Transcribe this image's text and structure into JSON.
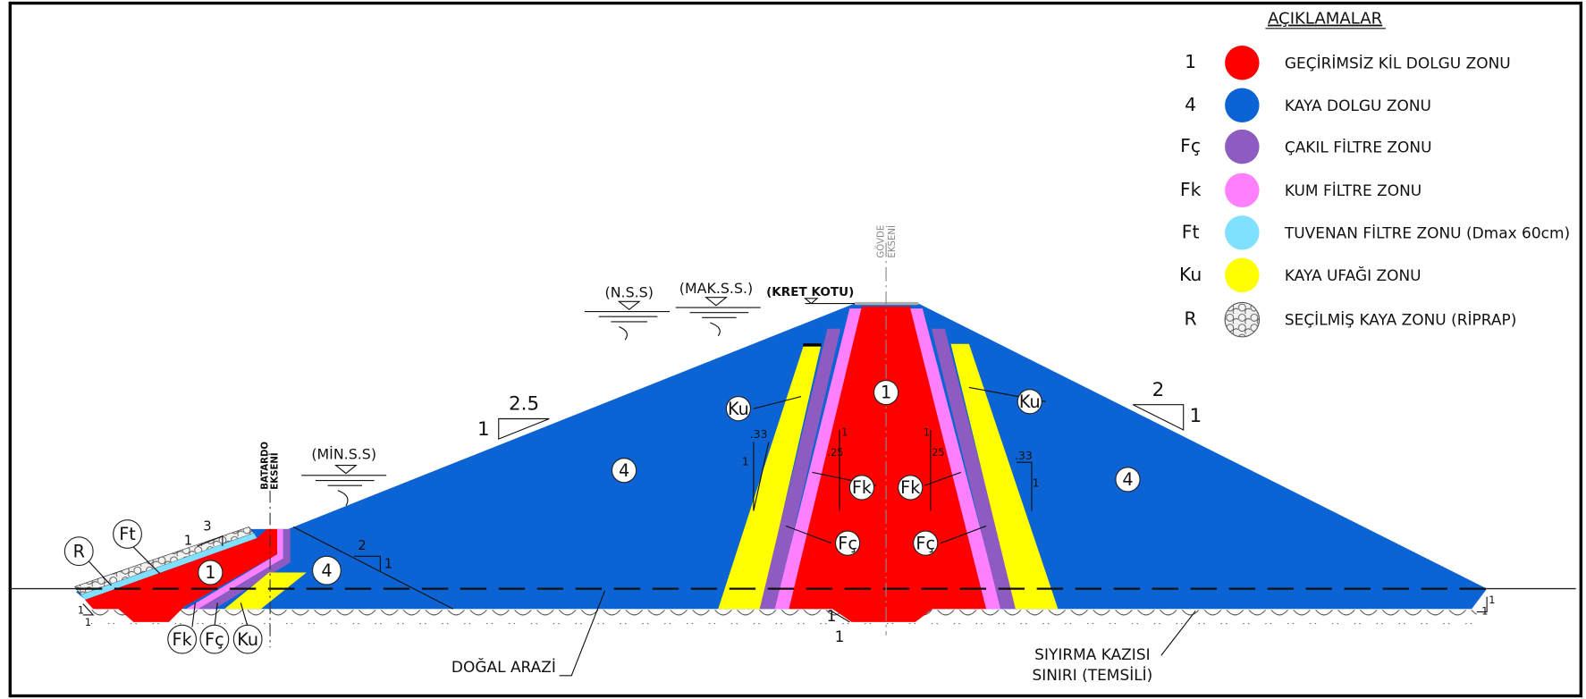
{
  "legend": {
    "title": "AÇIKLAMALAR",
    "items": [
      {
        "symbol": "1",
        "label": "GEÇİRİMSİZ KİL DOLGU ZONU",
        "color": "#ff0000"
      },
      {
        "symbol": "4",
        "label": "KAYA DOLGU ZONU",
        "color": "#0b63d4"
      },
      {
        "symbol": "Fç",
        "label": "ÇAKIL FİLTRE ZONU",
        "color": "#8e5cc0"
      },
      {
        "symbol": "Fk",
        "label": "KUM FİLTRE ZONU",
        "color": "#ff80ff"
      },
      {
        "symbol": "Ft",
        "label": "TUVENAN FİLTRE ZONU (Dmax 60cm)",
        "color": "#80e0ff"
      },
      {
        "symbol": "Ku",
        "label": "KAYA UFAĞI ZONU",
        "color": "#ffff00"
      },
      {
        "symbol": "R",
        "label": "SEÇİLMİŞ KAYA ZONU (RİPRAP)"
      }
    ]
  },
  "zones": [
    "1",
    "4",
    "4",
    "Ku",
    "Ku",
    "Fk",
    "Fk",
    "Fç",
    "Fç",
    "R",
    "Ft",
    "1",
    "4",
    "Fk",
    "Fç",
    "Ku"
  ],
  "annotations": {
    "nss": "(N.S.S)",
    "makss": "(MAK.S.S.)",
    "kret": "(KRET KOTU)",
    "minss": "(MİN.S.S)",
    "batardo": [
      "BATARDO",
      "EKSENİ"
    ],
    "govde": [
      "GÖVDE",
      "EKSENİ"
    ],
    "dogal": "DOĞAL ARAZİ",
    "siyirma": [
      "SIYIRMA KAZISI",
      "SINIRI (TEMSİLİ)"
    ]
  },
  "slopes": [
    {
      "h": "2.5",
      "v": "1"
    },
    {
      "h": "2",
      "v": "1"
    },
    {
      "h": "3",
      "v": "1"
    },
    {
      "h": "2",
      "v": "1"
    },
    {
      "h": ".33",
      "v": "1"
    },
    {
      "h": ".33",
      "v": "1"
    },
    {
      "h": ".25",
      "v": "1"
    },
    {
      "h": ".25",
      "v": "1"
    },
    {
      "h": "1",
      "v": "1"
    },
    {
      "h": "1",
      "v": "1"
    },
    {
      "h": "1",
      "v": "1"
    }
  ]
}
